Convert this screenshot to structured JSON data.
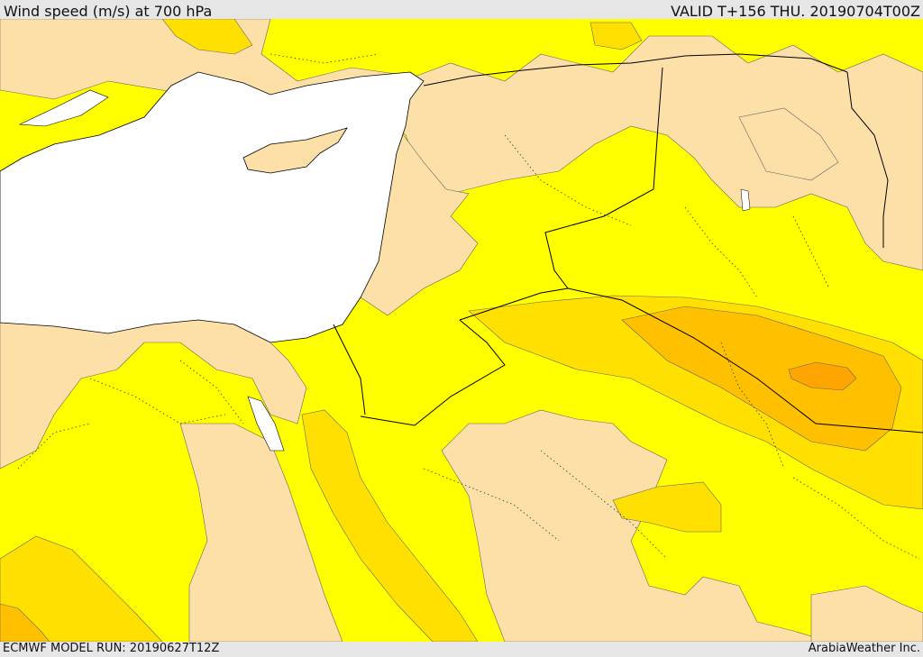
{
  "map": {
    "title": "Wind speed (m/s) at 700 hPa",
    "valid_time": "VALID T+156 THU. 20190704T00Z",
    "model_run": "ECMWF MODEL RUN: 20190627T12Z",
    "credit": "ArabiaWeather Inc."
  },
  "colors": {
    "sea": "#ffffff",
    "wind_band_0": "#fde0a8",
    "wind_band_1": "#ffff00",
    "wind_band_2": "#ffe000",
    "wind_band_3": "#ffc000",
    "wind_band_4": "#ffa500",
    "border_line": "#000000",
    "admin_line": "#333333",
    "background": "#e6e6e6"
  }
}
